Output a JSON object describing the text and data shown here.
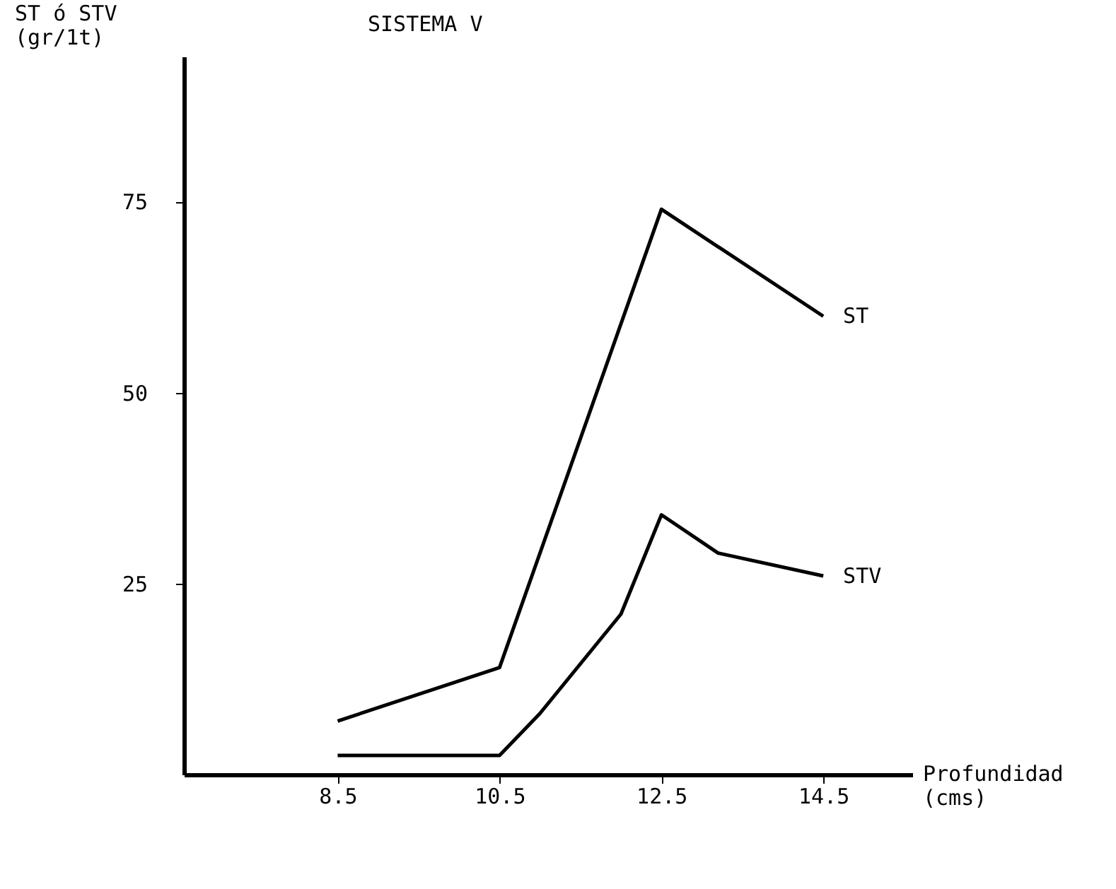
{
  "chart_data": {
    "type": "line",
    "title": "SISTEMA V",
    "xlabel": "Profundidad\n(cms)",
    "ylabel": "ST ó STV\n(gr/1t)",
    "series": [
      {
        "name": "ST",
        "color": "#000000",
        "x": [
          8.5,
          10.5,
          12.5,
          14.5
        ],
        "values": [
          7,
          14,
          74,
          60
        ]
      },
      {
        "name": "STV",
        "color": "#000000",
        "x": [
          8.5,
          10.5,
          11,
          12,
          12.5,
          13.2,
          14.5
        ],
        "values": [
          2.5,
          2.5,
          8,
          21,
          34,
          29,
          26
        ]
      }
    ],
    "xlim": [
      6.6,
      15.6
    ],
    "xticks": [
      8.5,
      10.5,
      12.5,
      14.5
    ],
    "ylim": [
      0,
      94
    ],
    "yticks": [
      25,
      50,
      75
    ],
    "grid": false,
    "legend": false,
    "marker": "none",
    "line_style": "solid"
  }
}
